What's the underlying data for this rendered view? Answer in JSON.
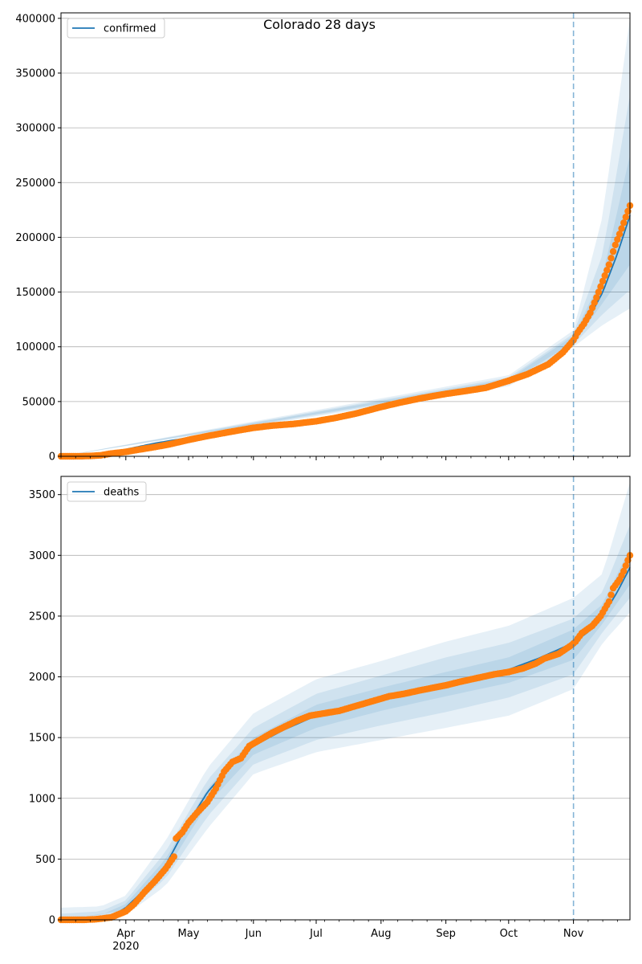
{
  "figure": {
    "title": "Colorado 28 days"
  },
  "chart_data": [
    {
      "type": "line",
      "title": "Colorado 28 days",
      "legend": "top-left",
      "series_name": "confirmed",
      "xlim": [
        "2020-03-01",
        "2020-11-28"
      ],
      "ylim": [
        0,
        405000
      ],
      "yticks": [
        0,
        50000,
        100000,
        150000,
        200000,
        250000,
        300000,
        350000,
        400000
      ],
      "grid": "horizontal",
      "marker_line": "2020-11-01",
      "model_curve": [
        [
          "2020-03-01",
          0
        ],
        [
          "2020-03-10",
          200
        ],
        [
          "2020-03-15",
          800
        ],
        [
          "2020-03-25",
          3500
        ],
        [
          "2020-04-05",
          8000
        ],
        [
          "2020-04-15",
          12000
        ],
        [
          "2020-05-01",
          17000
        ],
        [
          "2020-05-15",
          22000
        ],
        [
          "2020-06-01",
          26500
        ],
        [
          "2020-06-15",
          29000
        ],
        [
          "2020-07-01",
          32500
        ],
        [
          "2020-07-15",
          38000
        ],
        [
          "2020-08-01",
          47000
        ],
        [
          "2020-08-15",
          53000
        ],
        [
          "2020-09-01",
          57000
        ],
        [
          "2020-09-15",
          61000
        ],
        [
          "2020-10-01",
          69000
        ],
        [
          "2020-10-15",
          80000
        ],
        [
          "2020-10-25",
          94000
        ],
        [
          "2020-11-01",
          106000
        ],
        [
          "2020-11-08",
          125000
        ],
        [
          "2020-11-15",
          150000
        ],
        [
          "2020-11-22",
          185000
        ],
        [
          "2020-11-28",
          220000
        ]
      ],
      "bands": [
        {
          "lo": [
            [
              "2020-03-01",
              0
            ],
            [
              "2020-10-01",
              64000
            ],
            [
              "2020-11-01",
              100000
            ],
            [
              "2020-11-15",
              120000
            ],
            [
              "2020-11-28",
              135000
            ]
          ],
          "hi": [
            [
              "2020-03-01",
              0
            ],
            [
              "2020-10-01",
              74000
            ],
            [
              "2020-11-01",
              115000
            ],
            [
              "2020-11-15",
              220000
            ],
            [
              "2020-11-28",
              400000
            ]
          ]
        },
        {
          "lo": [
            [
              "2020-03-01",
              0
            ],
            [
              "2020-10-01",
              66000
            ],
            [
              "2020-11-01",
              102000
            ],
            [
              "2020-11-15",
              130000
            ],
            [
              "2020-11-28",
              152000
            ]
          ],
          "hi": [
            [
              "2020-03-01",
              0
            ],
            [
              "2020-10-01",
              72000
            ],
            [
              "2020-11-01",
              112000
            ],
            [
              "2020-11-15",
              185000
            ],
            [
              "2020-11-28",
              330000
            ]
          ]
        },
        {
          "lo": [
            [
              "2020-03-01",
              0
            ],
            [
              "2020-10-01",
              67500
            ],
            [
              "2020-11-01",
              104000
            ],
            [
              "2020-11-15",
              140000
            ],
            [
              "2020-11-28",
              175000
            ]
          ],
          "hi": [
            [
              "2020-03-01",
              0
            ],
            [
              "2020-10-01",
              70500
            ],
            [
              "2020-11-01",
              110000
            ],
            [
              "2020-11-15",
              165000
            ],
            [
              "2020-11-28",
              275000
            ]
          ]
        }
      ],
      "observed": [
        [
          "2020-03-01",
          0
        ],
        [
          "2020-03-10",
          50
        ],
        [
          "2020-03-15",
          300
        ],
        [
          "2020-03-20",
          900
        ],
        [
          "2020-03-25",
          2500
        ],
        [
          "2020-04-01",
          4000
        ],
        [
          "2020-04-07",
          6000
        ],
        [
          "2020-04-15",
          8500
        ],
        [
          "2020-04-22",
          11000
        ],
        [
          "2020-05-01",
          15000
        ],
        [
          "2020-05-10",
          18500
        ],
        [
          "2020-05-20",
          22000
        ],
        [
          "2020-06-01",
          26000
        ],
        [
          "2020-06-10",
          28000
        ],
        [
          "2020-06-20",
          29500
        ],
        [
          "2020-07-01",
          32000
        ],
        [
          "2020-07-10",
          35000
        ],
        [
          "2020-07-20",
          39000
        ],
        [
          "2020-08-01",
          45000
        ],
        [
          "2020-08-10",
          49000
        ],
        [
          "2020-08-20",
          53000
        ],
        [
          "2020-09-01",
          57000
        ],
        [
          "2020-09-10",
          59500
        ],
        [
          "2020-09-20",
          62500
        ],
        [
          "2020-10-01",
          69000
        ],
        [
          "2020-10-10",
          75000
        ],
        [
          "2020-10-20",
          84000
        ],
        [
          "2020-10-27",
          95000
        ],
        [
          "2020-11-01",
          106000
        ],
        [
          "2020-11-03",
          113000
        ],
        [
          "2020-11-06",
          121000
        ],
        [
          "2020-11-09",
          131000
        ],
        [
          "2020-11-12",
          145000
        ],
        [
          "2020-11-15",
          160000
        ],
        [
          "2020-11-18",
          175000
        ],
        [
          "2020-11-21",
          193000
        ],
        [
          "2020-11-24",
          208000
        ],
        [
          "2020-11-28",
          229000
        ]
      ]
    },
    {
      "type": "line",
      "legend": "top-left",
      "series_name": "deaths",
      "xlim": [
        "2020-03-01",
        "2020-11-28"
      ],
      "ylim": [
        0,
        3650
      ],
      "yticks": [
        0,
        500,
        1000,
        1500,
        2000,
        2500,
        3000,
        3500
      ],
      "xticks": [
        "Apr",
        "May",
        "Jun",
        "Jul",
        "Aug",
        "Sep",
        "Oct",
        "Nov"
      ],
      "xtick_dates": [
        "2020-04-01",
        "2020-05-01",
        "2020-06-01",
        "2020-07-01",
        "2020-08-01",
        "2020-09-01",
        "2020-10-01",
        "2020-11-01"
      ],
      "year_label": "2020",
      "grid": "horizontal",
      "marker_line": "2020-11-01",
      "model_curve": [
        [
          "2020-03-01",
          0
        ],
        [
          "2020-03-15",
          5
        ],
        [
          "2020-03-25",
          30
        ],
        [
          "2020-04-01",
          100
        ],
        [
          "2020-04-10",
          250
        ],
        [
          "2020-04-20",
          450
        ],
        [
          "2020-05-01",
          800
        ],
        [
          "2020-05-10",
          1050
        ],
        [
          "2020-05-20",
          1250
        ],
        [
          "2020-06-01",
          1430
        ],
        [
          "2020-06-15",
          1560
        ],
        [
          "2020-07-01",
          1680
        ],
        [
          "2020-07-15",
          1740
        ],
        [
          "2020-08-01",
          1820
        ],
        [
          "2020-08-15",
          1870
        ],
        [
          "2020-09-01",
          1940
        ],
        [
          "2020-09-15",
          1990
        ],
        [
          "2020-10-01",
          2060
        ],
        [
          "2020-10-15",
          2150
        ],
        [
          "2020-11-01",
          2280
        ],
        [
          "2020-11-08",
          2370
        ],
        [
          "2020-11-15",
          2500
        ],
        [
          "2020-11-22",
          2700
        ],
        [
          "2020-11-28",
          2900
        ]
      ],
      "bands": [
        {
          "lo": [
            [
              "2020-03-01",
              0
            ],
            [
              "2020-04-01",
              40
            ],
            [
              "2020-04-20",
              280
            ],
            [
              "2020-05-10",
              750
            ],
            [
              "2020-06-01",
              1200
            ],
            [
              "2020-07-01",
              1380
            ],
            [
              "2020-08-01",
              1480
            ],
            [
              "2020-09-01",
              1580
            ],
            [
              "2020-10-01",
              1680
            ],
            [
              "2020-11-01",
              1900
            ],
            [
              "2020-11-15",
              2280
            ],
            [
              "2020-11-28",
              2530
            ]
          ],
          "hi": [
            [
              "2020-03-01",
              100
            ],
            [
              "2020-03-20",
              110
            ],
            [
              "2020-04-01",
              200
            ],
            [
              "2020-04-20",
              650
            ],
            [
              "2020-05-10",
              1250
            ],
            [
              "2020-06-01",
              1700
            ],
            [
              "2020-07-01",
              1980
            ],
            [
              "2020-08-01",
              2130
            ],
            [
              "2020-09-01",
              2290
            ],
            [
              "2020-10-01",
              2420
            ],
            [
              "2020-11-01",
              2650
            ],
            [
              "2020-11-15",
              2850
            ],
            [
              "2020-11-28",
              3600
            ]
          ]
        },
        {
          "lo": [
            [
              "2020-03-01",
              0
            ],
            [
              "2020-04-01",
              60
            ],
            [
              "2020-04-20",
              340
            ],
            [
              "2020-05-10",
              850
            ],
            [
              "2020-06-01",
              1280
            ],
            [
              "2020-07-01",
              1480
            ],
            [
              "2020-08-01",
              1600
            ],
            [
              "2020-09-01",
              1710
            ],
            [
              "2020-10-01",
              1830
            ],
            [
              "2020-11-01",
              2020
            ],
            [
              "2020-11-15",
              2370
            ],
            [
              "2020-11-28",
              2650
            ]
          ],
          "hi": [
            [
              "2020-03-01",
              50
            ],
            [
              "2020-03-20",
              70
            ],
            [
              "2020-04-01",
              160
            ],
            [
              "2020-04-20",
              560
            ],
            [
              "2020-05-10",
              1150
            ],
            [
              "2020-06-01",
              1580
            ],
            [
              "2020-07-01",
              1860
            ],
            [
              "2020-08-01",
              2010
            ],
            [
              "2020-09-01",
              2160
            ],
            [
              "2020-10-01",
              2280
            ],
            [
              "2020-11-01",
              2480
            ],
            [
              "2020-11-15",
              2700
            ],
            [
              "2020-11-28",
              3250
            ]
          ]
        },
        {
          "lo": [
            [
              "2020-03-01",
              0
            ],
            [
              "2020-04-01",
              80
            ],
            [
              "2020-04-20",
              400
            ],
            [
              "2020-05-10",
              950
            ],
            [
              "2020-06-01",
              1360
            ],
            [
              "2020-07-01",
              1580
            ],
            [
              "2020-08-01",
              1720
            ],
            [
              "2020-09-01",
              1840
            ],
            [
              "2020-10-01",
              1950
            ],
            [
              "2020-11-01",
              2140
            ],
            [
              "2020-11-15",
              2440
            ],
            [
              "2020-11-28",
              2760
            ]
          ],
          "hi": [
            [
              "2020-03-01",
              20
            ],
            [
              "2020-03-20",
              40
            ],
            [
              "2020-04-01",
              130
            ],
            [
              "2020-04-20",
              500
            ],
            [
              "2020-05-10",
              1080
            ],
            [
              "2020-06-01",
              1500
            ],
            [
              "2020-07-01",
              1770
            ],
            [
              "2020-08-01",
              1910
            ],
            [
              "2020-09-01",
              2040
            ],
            [
              "2020-10-01",
              2160
            ],
            [
              "2020-11-01",
              2390
            ],
            [
              "2020-11-15",
              2600
            ],
            [
              "2020-11-28",
              3060
            ]
          ]
        }
      ],
      "observed": [
        [
          "2020-03-01",
          0
        ],
        [
          "2020-03-12",
          0
        ],
        [
          "2020-03-18",
          5
        ],
        [
          "2020-03-25",
          20
        ],
        [
          "2020-04-01",
          70
        ],
        [
          "2020-04-05",
          130
        ],
        [
          "2020-04-10",
          230
        ],
        [
          "2020-04-15",
          320
        ],
        [
          "2020-04-20",
          420
        ],
        [
          "2020-04-24",
          520
        ],
        [
          "2020-04-25",
          670
        ],
        [
          "2020-04-28",
          720
        ],
        [
          "2020-05-01",
          800
        ],
        [
          "2020-05-05",
          880
        ],
        [
          "2020-05-10",
          970
        ],
        [
          "2020-05-14",
          1080
        ],
        [
          "2020-05-18",
          1220
        ],
        [
          "2020-05-22",
          1300
        ],
        [
          "2020-05-26",
          1330
        ],
        [
          "2020-05-30",
          1430
        ],
        [
          "2020-06-04",
          1480
        ],
        [
          "2020-06-10",
          1540
        ],
        [
          "2020-06-16",
          1590
        ],
        [
          "2020-06-22",
          1640
        ],
        [
          "2020-06-28",
          1680
        ],
        [
          "2020-07-05",
          1700
        ],
        [
          "2020-07-12",
          1720
        ],
        [
          "2020-07-20",
          1760
        ],
        [
          "2020-07-28",
          1800
        ],
        [
          "2020-08-05",
          1840
        ],
        [
          "2020-08-12",
          1860
        ],
        [
          "2020-08-20",
          1890
        ],
        [
          "2020-09-01",
          1930
        ],
        [
          "2020-09-08",
          1960
        ],
        [
          "2020-09-16",
          1990
        ],
        [
          "2020-09-24",
          2020
        ],
        [
          "2020-10-01",
          2040
        ],
        [
          "2020-10-08",
          2070
        ],
        [
          "2020-10-14",
          2110
        ],
        [
          "2020-10-18",
          2150
        ],
        [
          "2020-10-25",
          2190
        ],
        [
          "2020-10-31",
          2260
        ],
        [
          "2020-11-02",
          2290
        ],
        [
          "2020-11-05",
          2360
        ],
        [
          "2020-11-10",
          2420
        ],
        [
          "2020-11-14",
          2500
        ],
        [
          "2020-11-18",
          2620
        ],
        [
          "2020-11-20",
          2730
        ],
        [
          "2020-11-23",
          2800
        ],
        [
          "2020-11-25",
          2870
        ],
        [
          "2020-11-27",
          2960
        ],
        [
          "2020-11-28",
          3000
        ]
      ]
    }
  ],
  "colors": {
    "line": "#1f77b4",
    "observed": "#ff7f0e",
    "band": "#1f77b4",
    "grid": "#b0b0b0",
    "vline": "#1f77b4"
  }
}
